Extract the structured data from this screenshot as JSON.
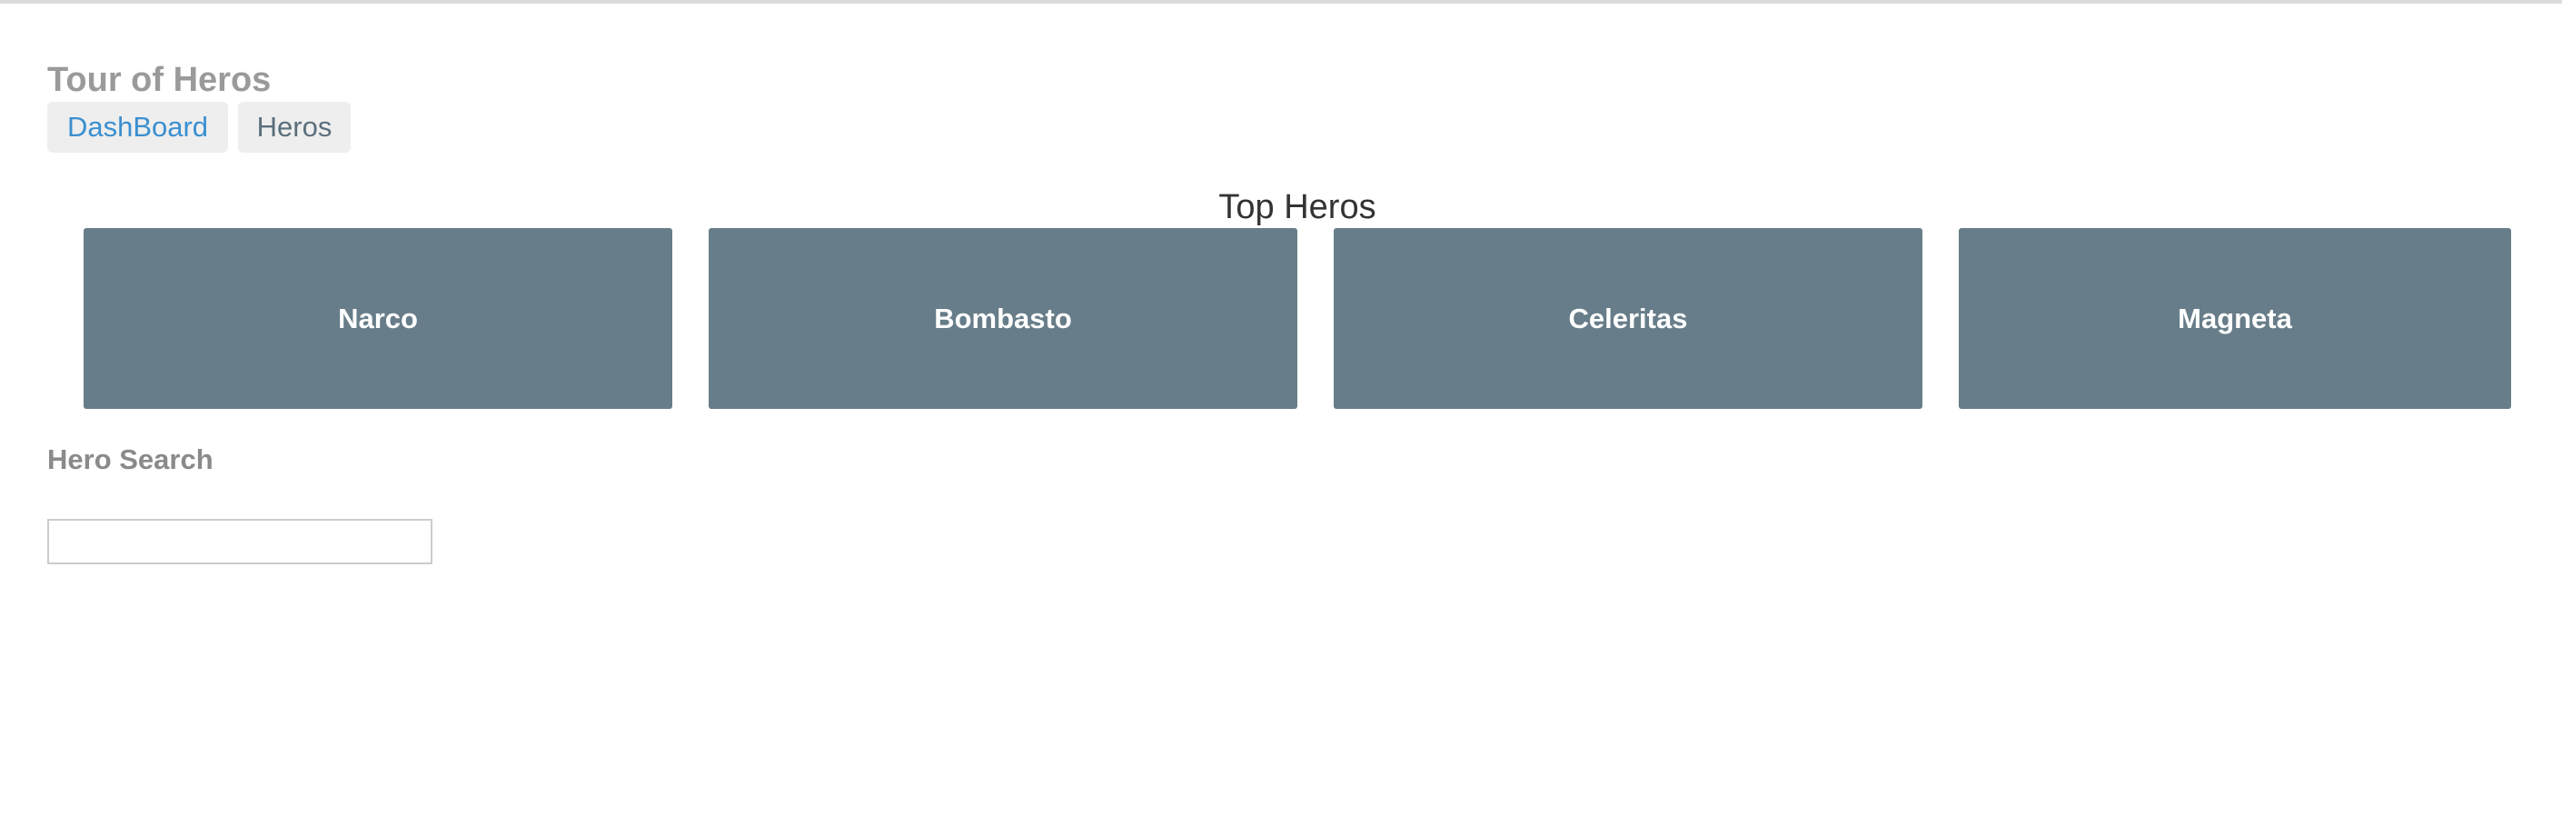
{
  "app": {
    "title": "Tour of Heros"
  },
  "nav": {
    "items": [
      {
        "label": "DashBoard",
        "active": true,
        "color": "#3a8fd0"
      },
      {
        "label": "Heros",
        "active": false,
        "color": "#5b6f7c"
      }
    ]
  },
  "dashboard": {
    "title": "Top Heros",
    "heroes": [
      {
        "name": "Narco"
      },
      {
        "name": "Bombasto"
      },
      {
        "name": "Celeritas"
      },
      {
        "name": "Magneta"
      }
    ],
    "card_color": "#677d89"
  },
  "search": {
    "title": "Hero Search",
    "value": "",
    "placeholder": ""
  }
}
